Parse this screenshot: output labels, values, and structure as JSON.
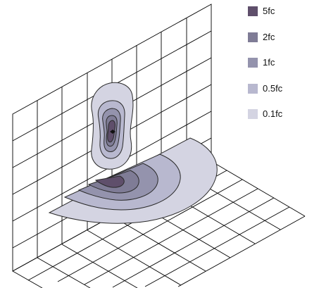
{
  "legend": [
    {
      "label": "5fc",
      "color": "#5f4f6b"
    },
    {
      "label": "2fc",
      "color": "#7f7c96"
    },
    {
      "label": "1fc",
      "color": "#9493ad"
    },
    {
      "label": "0.5fc",
      "color": "#b8b8cf"
    },
    {
      "label": "0.1fc",
      "color": "#d4d4e2"
    }
  ],
  "colors": {
    "grid": "#000000",
    "contour_line": "#2a2a2a",
    "background": "#ffffff"
  }
}
